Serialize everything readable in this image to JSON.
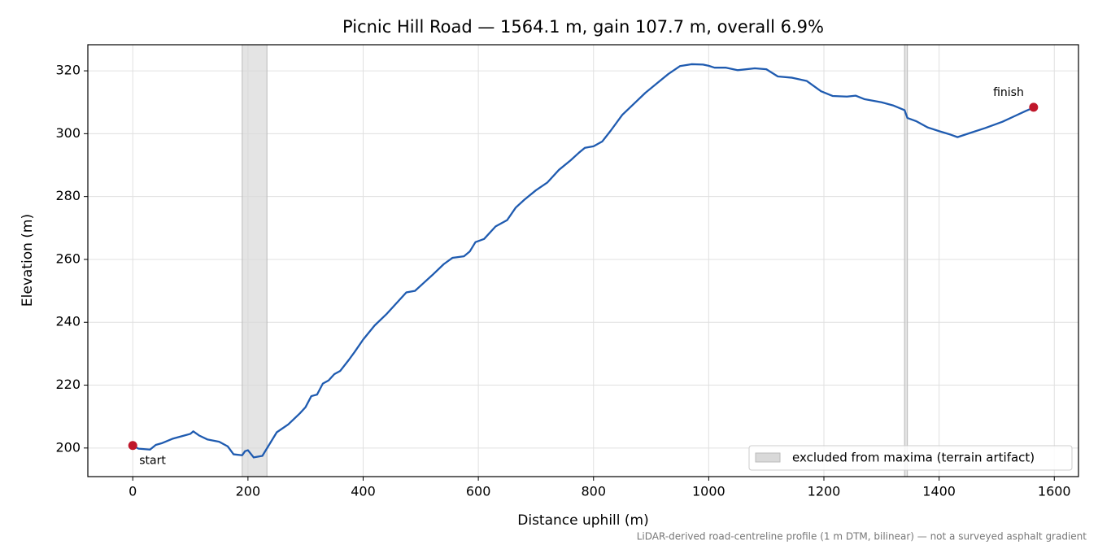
{
  "chart_data": {
    "type": "line",
    "title": "Picnic Hill Road — 1564.1 m, gain 107.7 m, overall 6.9%",
    "xlabel": "Distance uphill (m)",
    "ylabel": "Elevation (m)",
    "footnote": "LiDAR-derived road-centreline profile (1 m DTM, bilinear) — not a surveyed asphalt gradient",
    "xlim": [
      -78,
      1642
    ],
    "ylim": [
      190.9,
      328.3
    ],
    "xticks": [
      0,
      200,
      400,
      600,
      800,
      1000,
      1200,
      1400,
      1600
    ],
    "yticks": [
      200,
      220,
      240,
      260,
      280,
      300,
      320
    ],
    "grid": true,
    "legend_position": "lower right",
    "x": [
      0,
      10,
      30,
      40,
      50,
      70,
      90,
      100,
      105,
      115,
      130,
      150,
      165,
      175,
      190,
      195,
      200,
      210,
      225,
      240,
      250,
      270,
      290,
      300,
      310,
      320,
      330,
      340,
      350,
      360,
      375,
      385,
      400,
      420,
      440,
      460,
      475,
      490,
      505,
      520,
      540,
      555,
      575,
      585,
      595,
      610,
      630,
      650,
      665,
      680,
      700,
      720,
      740,
      760,
      775,
      785,
      800,
      815,
      830,
      850,
      870,
      890,
      910,
      930,
      950,
      970,
      990,
      1000,
      1010,
      1030,
      1050,
      1080,
      1100,
      1120,
      1145,
      1170,
      1195,
      1215,
      1240,
      1255,
      1270,
      1300,
      1320,
      1340,
      1345,
      1360,
      1380,
      1400,
      1420,
      1432,
      1450,
      1480,
      1510,
      1530,
      1550,
      1564.1
    ],
    "series": [
      {
        "color": "#1f5bb0",
        "values": [
          200.7,
          199.8,
          199.5,
          201,
          201.5,
          203,
          204,
          204.5,
          205.3,
          204,
          202.7,
          202,
          200.5,
          198,
          197.7,
          199,
          199.3,
          197,
          197.5,
          202,
          205,
          207.5,
          211,
          213,
          216.5,
          217,
          220.5,
          221.5,
          223.5,
          224.5,
          228,
          230.5,
          234.5,
          239,
          242.5,
          246.5,
          249.5,
          250,
          252.5,
          255,
          258.5,
          260.5,
          261,
          262.5,
          265.5,
          266.5,
          270.5,
          272.5,
          276.5,
          279,
          282,
          284.5,
          288.5,
          291.5,
          294,
          295.5,
          296,
          297.5,
          301,
          306,
          309.5,
          313,
          316,
          319,
          321.5,
          322.1,
          322,
          321.6,
          321,
          321,
          320.2,
          320.8,
          320.5,
          318.2,
          317.8,
          316.8,
          313.5,
          312,
          311.8,
          312.1,
          311,
          310,
          309,
          307.5,
          305,
          304,
          302,
          300.8,
          299.7,
          298.9,
          300,
          301.8,
          303.8,
          305.5,
          307.2,
          308.3
        ]
      }
    ],
    "excluded": {
      "label": "excluded from maxima (terrain artifact)",
      "color": "#d9d9d9",
      "ranges": [
        [
          190,
          233
        ],
        [
          1340,
          1345
        ]
      ]
    },
    "markers": {
      "color": "#c0172b",
      "points": [
        {
          "label": "start",
          "x": 0,
          "y": 200.8
        },
        {
          "label": "finish",
          "x": 1564.1,
          "y": 308.4
        }
      ]
    }
  }
}
